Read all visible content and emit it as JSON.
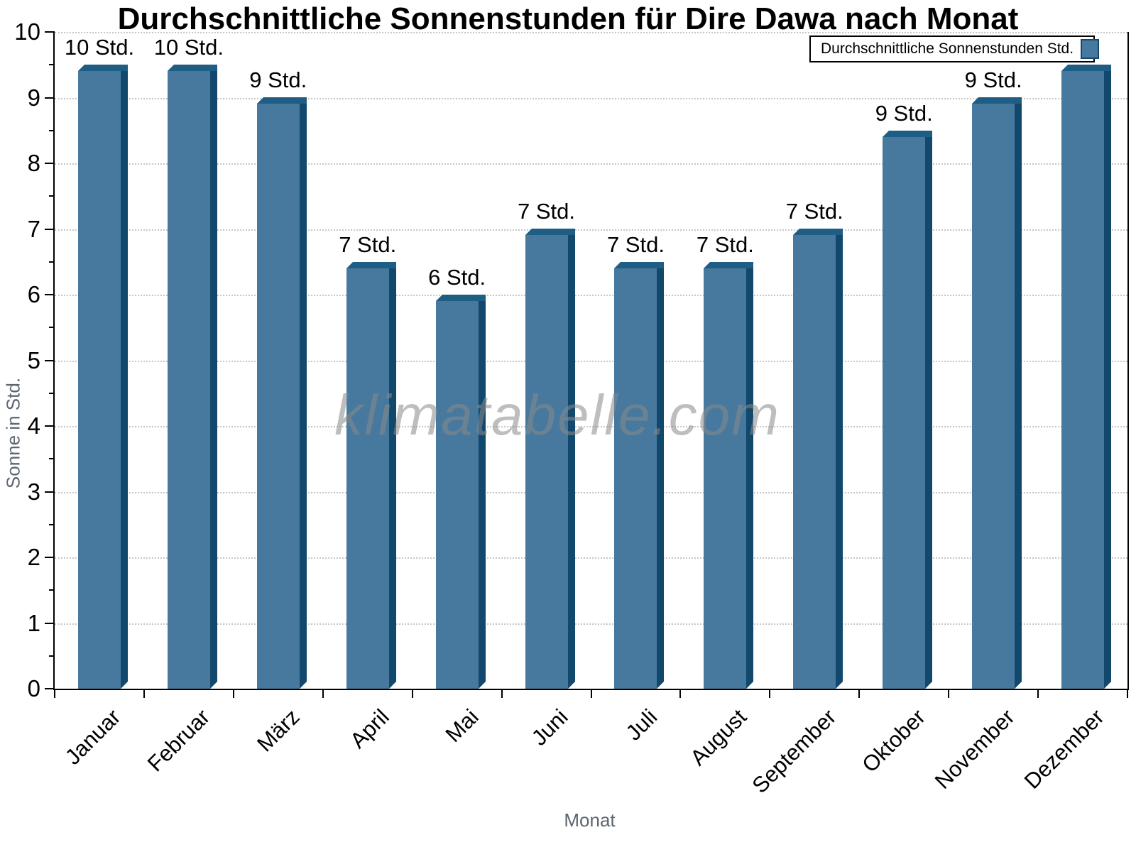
{
  "watermark": "klimatabelle.com",
  "chart_data": {
    "type": "bar",
    "title": "Durchschnittliche Sonnenstunden für Dire Dawa nach Monat",
    "xlabel": "Monat",
    "ylabel": "Sonne in Std.",
    "legend_label": "Durchschnittliche Sonnenstunden Std.",
    "legend_position": "top-right",
    "ylim": [
      0,
      10
    ],
    "y_major_step": 1,
    "y_minor_step": 0.5,
    "grid": "horizontal dotted lines at integer values",
    "categories": [
      "Januar",
      "Februar",
      "März",
      "April",
      "Mai",
      "Juni",
      "Juli",
      "August",
      "September",
      "Oktober",
      "November",
      "Dezember"
    ],
    "values": [
      9.5,
      9.5,
      9,
      6.5,
      6,
      7,
      6.5,
      6.5,
      7,
      8.5,
      9,
      9.5
    ],
    "bar_labels": [
      "10 Std.",
      "10 Std.",
      "9 Std.",
      "7 Std.",
      "6 Std.",
      "7 Std.",
      "7 Std.",
      "7 Std.",
      "7 Std.",
      "9 Std.",
      "9 Std.",
      ""
    ],
    "bar_label_unit": "Std.",
    "colors": {
      "bar_face": "#47799F",
      "bar_side": "#12486C",
      "bar_top": "#1E5E84",
      "grid": "#c6c6c6",
      "axis": "#000000",
      "axis_title": "#5C6670",
      "text": "#000000",
      "watermark": "#8a8a8a"
    }
  }
}
